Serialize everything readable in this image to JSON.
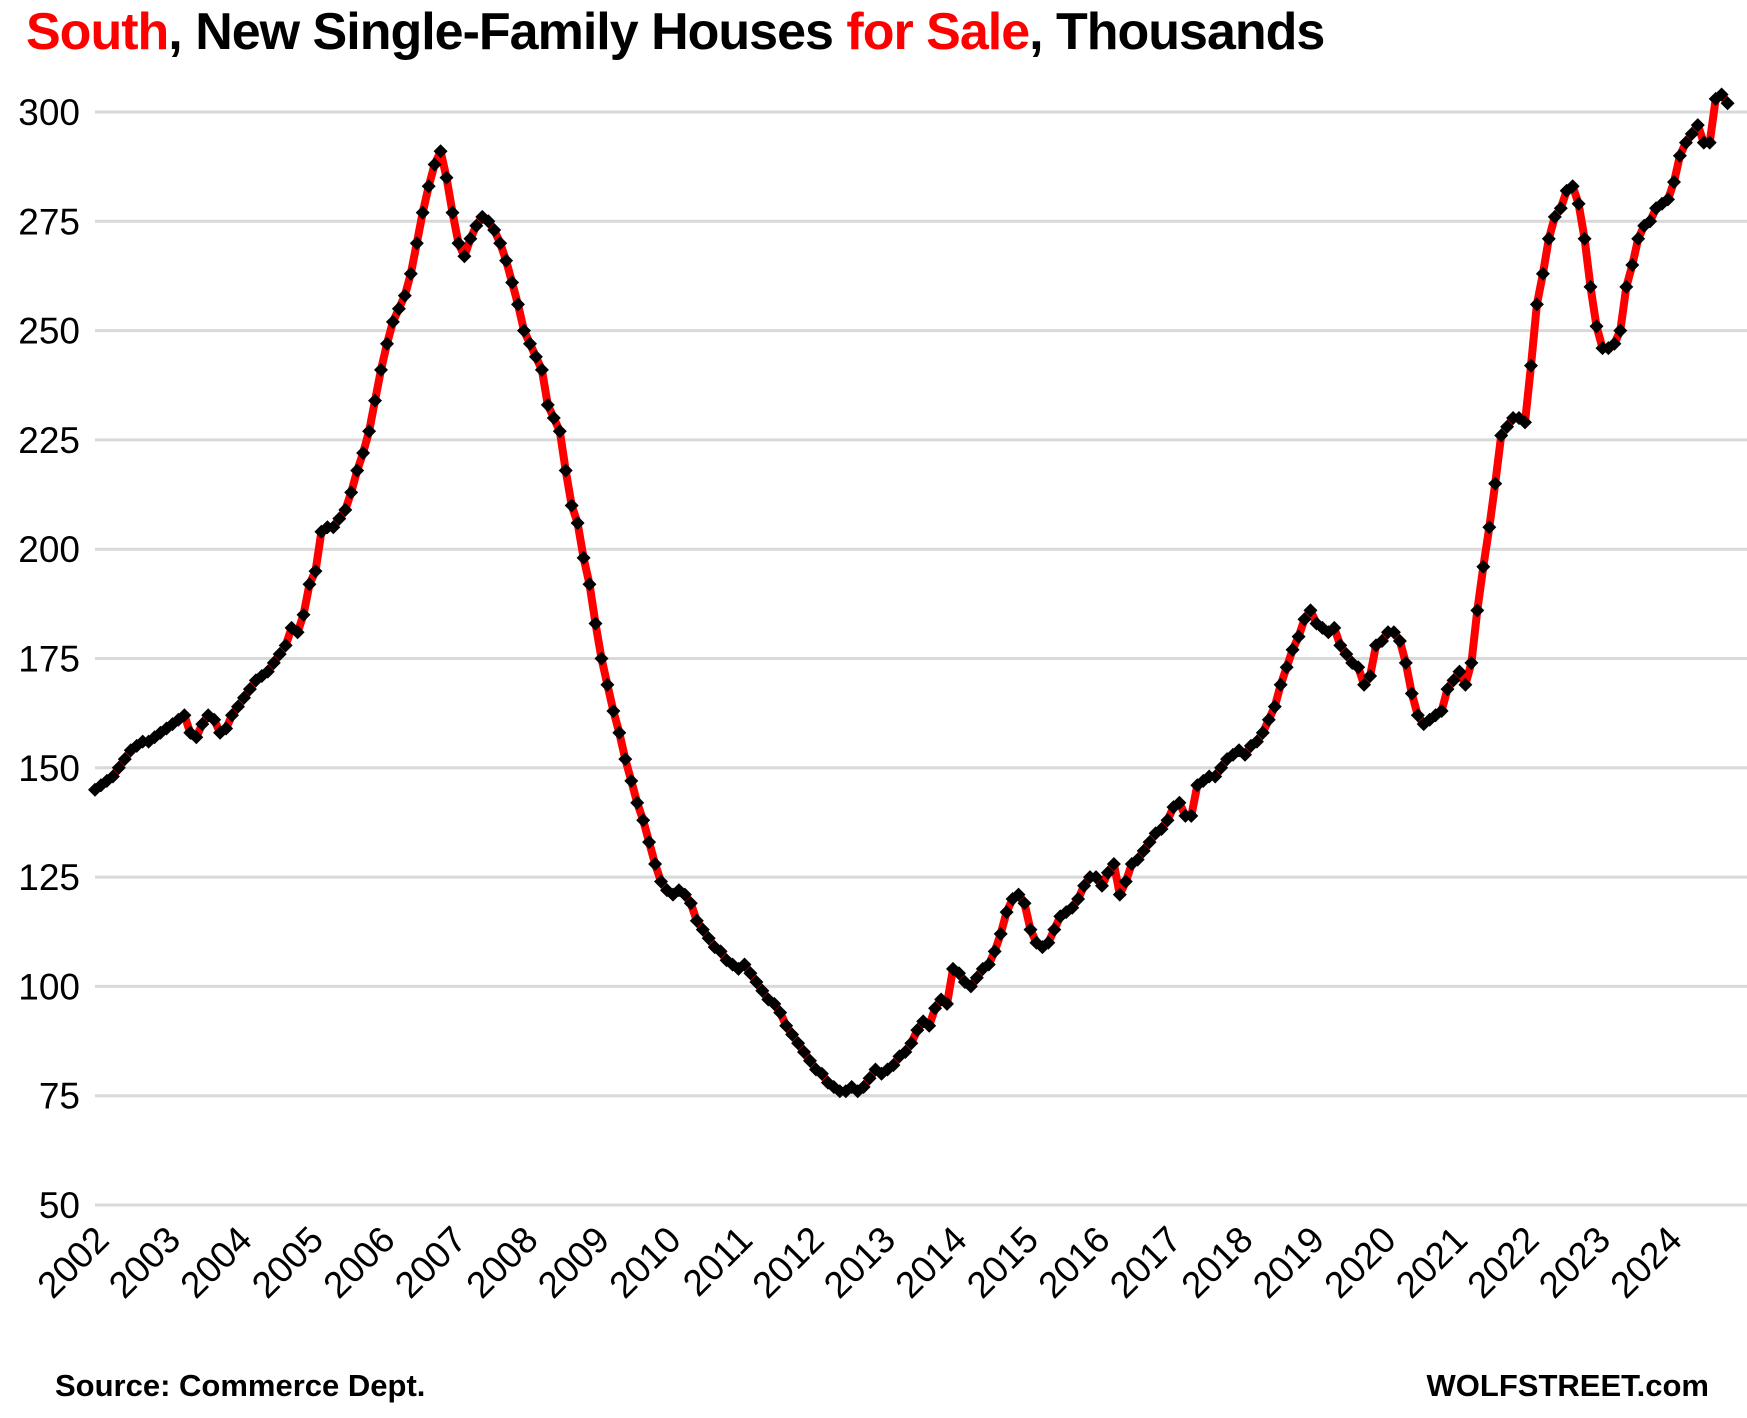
{
  "title": {
    "segments": [
      {
        "text": "South",
        "color": "#ff0000"
      },
      {
        "text": ", New Single-Family Houses ",
        "color": "#000000"
      },
      {
        "text": "for Sale",
        "color": "#ff0000"
      },
      {
        "text": ", Thousands",
        "color": "#000000"
      }
    ]
  },
  "footer": {
    "source": "Source: Commerce Dept.",
    "brand": "WOLFSTREET.com"
  },
  "theme": {
    "line_color": "#ff0000",
    "marker_color": "#000000",
    "gridline_color": "#d9d9d9",
    "text_color": "#000000",
    "background": "#ffffff"
  },
  "chart_data": {
    "type": "line",
    "title": "South, New Single-Family Houses for Sale, Thousands",
    "xlabel": "",
    "ylabel": "",
    "ylim": [
      50,
      300
    ],
    "y_ticks": [
      50,
      75,
      100,
      125,
      150,
      175,
      200,
      225,
      250,
      275,
      300
    ],
    "x_tick_years": [
      2002,
      2003,
      2004,
      2005,
      2006,
      2007,
      2008,
      2009,
      2010,
      2011,
      2012,
      2013,
      2014,
      2015,
      2016,
      2017,
      2018,
      2019,
      2020,
      2021,
      2022,
      2023,
      2024
    ],
    "x_start": "2002-01",
    "x_end": "2024-11",
    "grid": "horizontal-only",
    "legend": "none",
    "marker": "diamond",
    "series": [
      {
        "name": "New single-family houses for sale, South, thousands",
        "monthly_values": [
          145,
          146,
          147,
          148,
          150,
          152,
          154,
          155,
          156,
          156,
          157,
          158,
          159,
          160,
          161,
          162,
          158,
          157,
          160,
          162,
          161,
          158,
          159,
          162,
          164,
          166,
          168,
          170,
          171,
          172,
          174,
          176,
          178,
          182,
          181,
          185,
          192,
          195,
          204,
          205,
          205,
          207,
          209,
          213,
          218,
          222,
          227,
          234,
          241,
          247,
          252,
          255,
          258,
          263,
          270,
          277,
          283,
          288,
          291,
          285,
          277,
          270,
          267,
          271,
          274,
          276,
          275,
          273,
          270,
          266,
          261,
          256,
          250,
          247,
          244,
          241,
          233,
          230,
          227,
          218,
          210,
          206,
          198,
          192,
          183,
          175,
          169,
          163,
          158,
          152,
          147,
          142,
          138,
          133,
          128,
          124,
          122,
          121,
          122,
          121,
          119,
          115,
          113,
          111,
          109,
          108,
          106,
          105,
          104,
          105,
          103,
          101,
          99,
          97,
          96,
          94,
          91,
          89,
          87,
          85,
          83,
          81,
          80,
          78,
          77,
          76,
          76,
          77,
          76,
          77,
          79,
          81,
          80,
          81,
          82,
          84,
          85,
          87,
          90,
          92,
          91,
          95,
          97,
          96,
          104,
          103,
          101,
          100,
          102,
          104,
          105,
          108,
          112,
          117,
          120,
          121,
          119,
          113,
          110,
          109,
          110,
          113,
          116,
          117,
          118,
          120,
          123,
          125,
          125,
          123,
          126,
          128,
          121,
          124,
          128,
          129,
          131,
          133,
          135,
          136,
          138,
          141,
          142,
          139,
          139,
          146,
          147,
          148,
          148,
          150,
          152,
          153,
          154,
          153,
          155,
          156,
          158,
          161,
          164,
          169,
          173,
          177,
          180,
          184,
          186,
          183,
          182,
          181,
          182,
          178,
          176,
          174,
          173,
          169,
          171,
          178,
          179,
          181,
          181,
          179,
          174,
          167,
          162,
          160,
          161,
          162,
          163,
          168,
          170,
          172,
          169,
          174,
          186,
          196,
          205,
          215,
          226,
          228,
          230,
          230,
          229,
          242,
          256,
          263,
          271,
          276,
          278,
          282,
          283,
          279,
          271,
          260,
          251,
          246,
          246,
          247,
          250,
          260,
          265,
          271,
          274,
          275,
          278,
          279,
          280,
          284,
          290,
          293,
          295,
          297,
          293,
          293,
          303,
          304,
          302
        ]
      }
    ]
  }
}
